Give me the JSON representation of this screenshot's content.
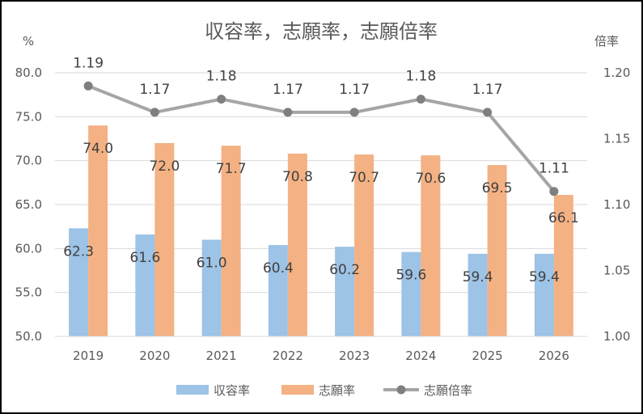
{
  "chart_data": {
    "type": "bar",
    "title": "収容率，志願率，志願倍率",
    "categories": [
      "2019",
      "2020",
      "2021",
      "2022",
      "2023",
      "2024",
      "2025",
      "2026"
    ],
    "series": [
      {
        "name": "収容率",
        "type": "bar",
        "axis": "left",
        "color": "#9dc3e6",
        "values": [
          62.3,
          61.6,
          61.0,
          60.4,
          60.2,
          59.6,
          59.4,
          59.4
        ]
      },
      {
        "name": "志願率",
        "type": "bar",
        "axis": "left",
        "color": "#f4b183",
        "values": [
          74.0,
          72.0,
          71.7,
          70.8,
          70.7,
          70.6,
          69.5,
          66.1
        ]
      },
      {
        "name": "志願倍率",
        "type": "line",
        "axis": "right",
        "color": "#a5a5a5",
        "values": [
          1.19,
          1.17,
          1.18,
          1.17,
          1.17,
          1.18,
          1.17,
          1.11
        ]
      }
    ],
    "y_left": {
      "label": "%",
      "range": [
        50.0,
        80.0
      ],
      "ticks": [
        "50.0",
        "55.0",
        "60.0",
        "65.0",
        "70.0",
        "75.0",
        "80.0"
      ]
    },
    "y_right": {
      "label": "倍率",
      "range": [
        1.0,
        1.2
      ],
      "ticks": [
        "1.00",
        "1.05",
        "1.10",
        "1.15",
        "1.20"
      ]
    },
    "bar_labels": {
      "収容率": [
        "62.3",
        "61.6",
        "61.0",
        "60.4",
        "60.2",
        "59.6",
        "59.4",
        "59.4"
      ],
      "志願率": [
        "74.0",
        "72.0",
        "71.7",
        "70.8",
        "70.7",
        "70.6",
        "69.5",
        "66.1"
      ],
      "志願倍率": [
        "1.19",
        "1.17",
        "1.18",
        "1.17",
        "1.17",
        "1.18",
        "1.17",
        "1.11"
      ]
    },
    "grid": true,
    "legend_position": "bottom"
  }
}
